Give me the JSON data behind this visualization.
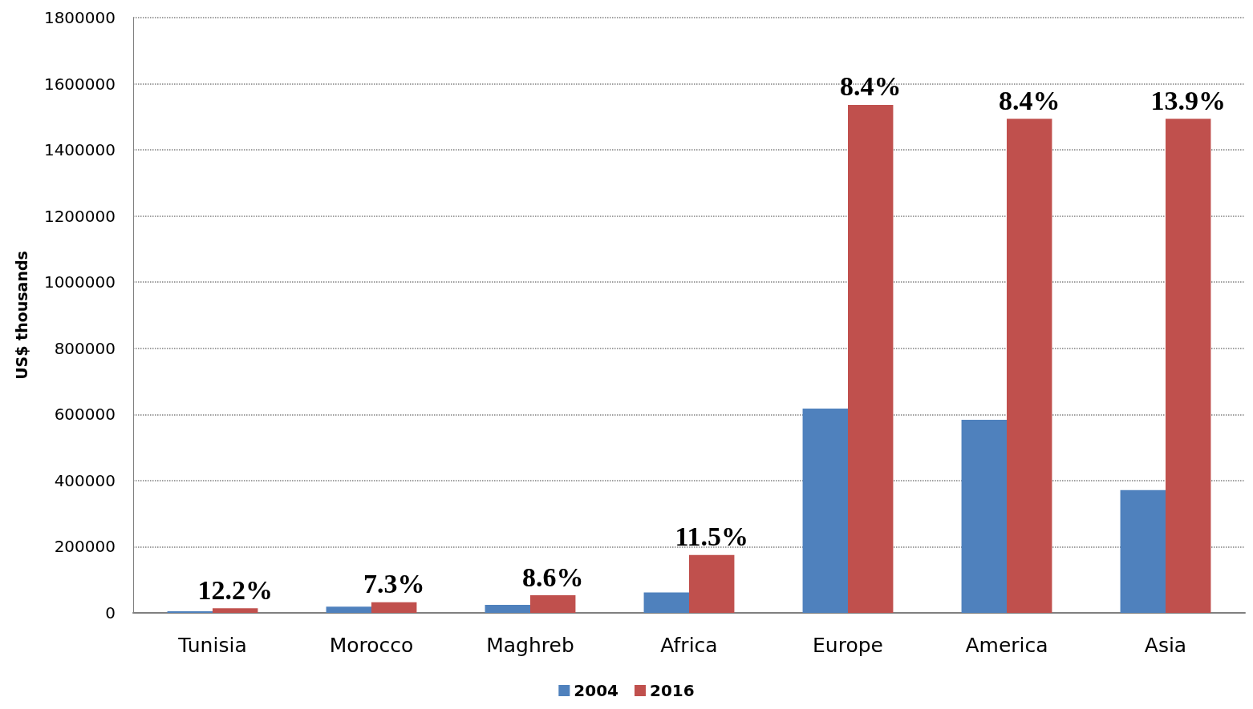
{
  "chart_data": {
    "type": "bar",
    "ylabel": "US$ thousands",
    "categories": [
      "Tunisia",
      "Morocco",
      "Maghreb",
      "Africa",
      "Europe",
      "America",
      "Asia"
    ],
    "series": [
      {
        "name": "2004",
        "color": "#4f81bd",
        "values": [
          5000,
          19000,
          24000,
          62000,
          618000,
          584000,
          371000
        ]
      },
      {
        "name": "2016",
        "color": "#c0504d",
        "values": [
          14000,
          32000,
          53000,
          175000,
          1536000,
          1494000,
          1494000
        ]
      }
    ],
    "annotations": [
      {
        "text": "12.2%",
        "x": "Tunisia",
        "y": 14000
      },
      {
        "text": "7.3%",
        "x": "Morocco",
        "y": 32000
      },
      {
        "text": "8.6%",
        "x": "Maghreb",
        "y": 53000
      },
      {
        "text": "11.5%",
        "x": "Africa",
        "y": 175000
      },
      {
        "text": "8.4%",
        "x": "Europe",
        "y": 1536000
      },
      {
        "text": "8.4%",
        "x": "America",
        "y": 1494000
      },
      {
        "text": "13.9%",
        "x": "Asia",
        "y": 1494000
      }
    ],
    "ylim": [
      0,
      1800000
    ],
    "yticks": [
      0,
      200000,
      400000,
      600000,
      800000,
      1000000,
      1200000,
      1400000,
      1600000,
      1800000
    ],
    "grid": "y",
    "legend": "bottom"
  }
}
